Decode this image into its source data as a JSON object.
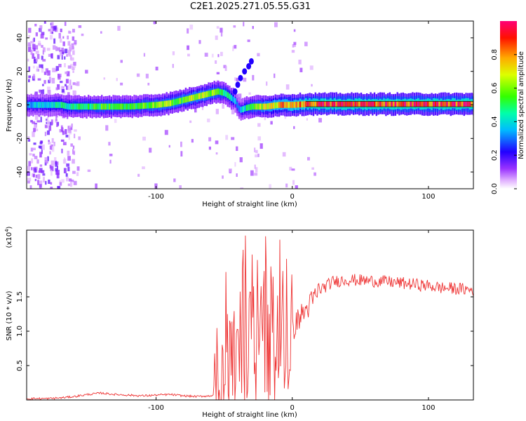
{
  "title": "C2E1.2025.271.05.55.G31",
  "chart_data": [
    {
      "type": "heatmap",
      "title": "C2E1.2025.271.05.55.G31",
      "xlabel": "Height of straight line (km)",
      "ylabel": "Frequency (Hz)",
      "xlim": [
        -195,
        133
      ],
      "ylim": [
        -50,
        50
      ],
      "x_ticks": [
        -100,
        0,
        100
      ],
      "x_tick_labels": [
        "-100",
        "0",
        "100"
      ],
      "y_ticks": [
        -40,
        -20,
        0,
        20,
        40
      ],
      "y_tick_labels": [
        "-40",
        "-20",
        "0",
        "20",
        "40"
      ],
      "colorbar": {
        "label": "Normalized spectral amplitude",
        "range": [
          0,
          1
        ],
        "ticks": [
          0.0,
          0.2,
          0.4,
          0.6,
          0.8
        ],
        "tick_labels": [
          "0.0",
          "0.2",
          "0.4",
          "0.6",
          "0.8"
        ],
        "colors": [
          "#ffffff",
          "#cc66ff",
          "#6600cc",
          "#0000ff",
          "#00ffff",
          "#00ff00",
          "#ffff00",
          "#ff8800",
          "#ff0000",
          "#ff0066"
        ]
      },
      "ridge": {
        "x": [
          -195,
          -180,
          -170,
          -165,
          -160,
          -150,
          -140,
          -130,
          -120,
          -110,
          -100,
          -90,
          -80,
          -70,
          -60,
          -55,
          -50,
          -45,
          -42,
          -40,
          -38,
          -35,
          -30,
          -20,
          -10,
          0,
          10,
          20,
          50,
          100,
          133
        ],
        "freq": [
          0,
          0,
          0,
          -1,
          -1,
          -1,
          -1,
          -1,
          -1,
          -0.5,
          0,
          1,
          3,
          5,
          7,
          8,
          7,
          4,
          2,
          -2,
          -3,
          -2,
          -1,
          -1,
          0,
          0,
          0.5,
          0.5,
          0.5,
          0.5,
          0.5
        ],
        "amplitude": [
          0.35,
          0.4,
          0.45,
          0.45,
          0.5,
          0.5,
          0.55,
          0.55,
          0.5,
          0.55,
          0.6,
          0.6,
          0.6,
          0.65,
          0.6,
          0.55,
          0.5,
          0.45,
          0.3,
          0.3,
          0.35,
          0.45,
          0.55,
          0.65,
          0.75,
          0.8,
          0.85,
          0.9,
          0.9,
          0.9,
          0.9
        ]
      },
      "side_branch": {
        "x": [
          -42,
          -40,
          -38,
          -35,
          -32,
          -30
        ],
        "freq": [
          8,
          12,
          16,
          20,
          23,
          26
        ]
      }
    },
    {
      "type": "line",
      "xlabel": "Height of straight line (km)",
      "ylabel": "SNR (10 * v/v)",
      "y_scale_label": "(x10",
      "y_scale_exponent": "4",
      "y_scale_suffix": ")",
      "xlim": [
        -195,
        133
      ],
      "ylim": [
        0,
        2.47
      ],
      "x_ticks": [
        -100,
        0,
        100
      ],
      "x_tick_labels": [
        "-100",
        "0",
        "100"
      ],
      "y_ticks": [
        0.5,
        1.0,
        1.5
      ],
      "y_tick_labels": [
        "0.5",
        "1.0",
        "1.5"
      ],
      "color": "#ee3333",
      "x": [
        -195,
        -180,
        -170,
        -160,
        -150,
        -140,
        -130,
        -120,
        -110,
        -100,
        -90,
        -80,
        -70,
        -60,
        -55,
        -50,
        -45,
        -40,
        -35,
        -30,
        -25,
        -20,
        -15,
        -10,
        -5,
        0,
        5,
        10,
        15,
        20,
        30,
        40,
        50,
        60,
        70,
        80,
        90,
        100,
        110,
        120,
        133
      ],
      "y": [
        0.02,
        0.02,
        0.03,
        0.05,
        0.08,
        0.1,
        0.08,
        0.07,
        0.06,
        0.07,
        0.08,
        0.06,
        0.05,
        0.06,
        0.1,
        0.4,
        0.8,
        1.0,
        0.9,
        1.1,
        0.8,
        1.0,
        0.7,
        0.9,
        1.1,
        1.0,
        1.2,
        1.3,
        1.45,
        1.6,
        1.72,
        1.75,
        1.74,
        1.73,
        1.72,
        1.7,
        1.68,
        1.66,
        1.63,
        1.62,
        1.6
      ]
    }
  ]
}
